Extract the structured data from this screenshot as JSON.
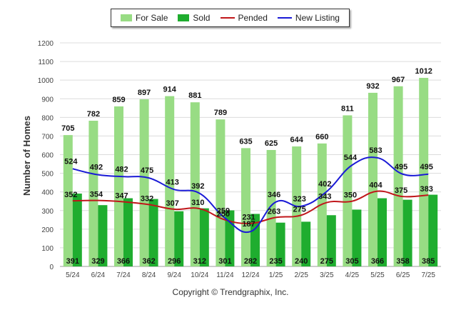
{
  "legend": {
    "items": [
      {
        "label": "For Sale",
        "color": "#98dc84",
        "kind": "bar"
      },
      {
        "label": "Sold",
        "color": "#1fad2f",
        "kind": "bar"
      },
      {
        "label": "Pended",
        "color": "#c0161a",
        "kind": "line"
      },
      {
        "label": "New Listing",
        "color": "#1a1ad6",
        "kind": "line"
      }
    ]
  },
  "copyright": "Copyright © Trendgraphix, Inc.",
  "chart_data": {
    "type": "bar",
    "ylabel": "Number of Homes",
    "xlabel": "",
    "ylim": [
      0,
      1200
    ],
    "yticks": [
      0,
      100,
      200,
      300,
      400,
      500,
      600,
      700,
      800,
      900,
      1000,
      1100,
      1200
    ],
    "grid": true,
    "legend_position": "top-center",
    "categories": [
      "5/24",
      "6/24",
      "7/24",
      "8/24",
      "9/24",
      "10/24",
      "11/24",
      "12/24",
      "1/25",
      "2/25",
      "3/25",
      "4/25",
      "5/25",
      "6/25",
      "7/25"
    ],
    "series": [
      {
        "name": "For Sale",
        "kind": "bar",
        "color": "#98dc84",
        "values": [
          705,
          782,
          859,
          897,
          914,
          881,
          789,
          635,
          625,
          644,
          660,
          811,
          932,
          967,
          1012
        ]
      },
      {
        "name": "Sold",
        "kind": "bar",
        "color": "#1fad2f",
        "values": [
          391,
          329,
          366,
          362,
          296,
          312,
          301,
          282,
          235,
          240,
          275,
          305,
          366,
          358,
          385
        ]
      },
      {
        "name": "Pended",
        "kind": "line",
        "color": "#c0161a",
        "values": [
          352,
          354,
          347,
          332,
          307,
          310,
          250,
          231,
          263,
          275,
          343,
          350,
          404,
          375,
          383
        ]
      },
      {
        "name": "New Listing",
        "kind": "line",
        "color": "#1a1ad6",
        "values": [
          524,
          492,
          482,
          475,
          413,
          392,
          259,
          187,
          346,
          323,
          402,
          544,
          583,
          495,
          495
        ]
      }
    ]
  }
}
